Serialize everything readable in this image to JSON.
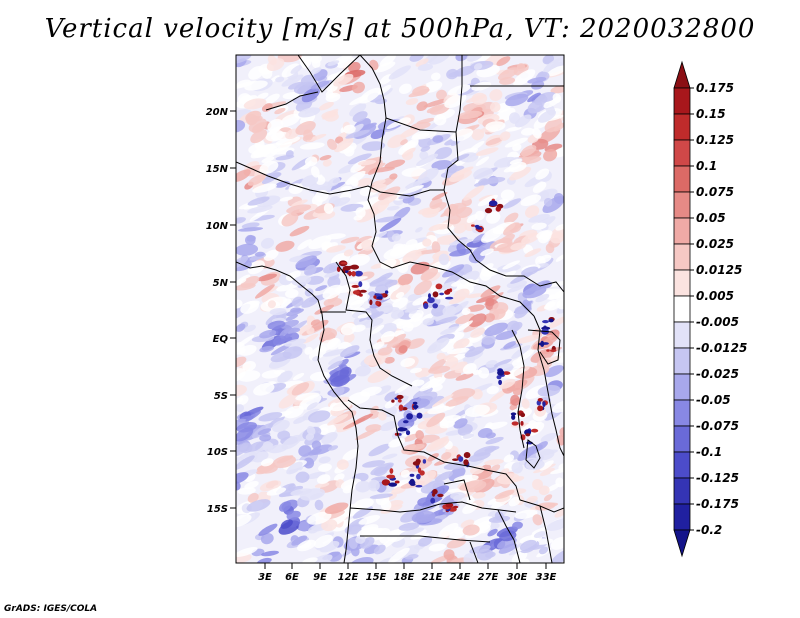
{
  "title": "Vertical velocity [m/s] at 500hPa, VT: 2020032800",
  "footer": "GrADS: IGES/COLA",
  "lat_ticks": [
    "20N",
    "15N",
    "10N",
    "5N",
    "EQ",
    "5S",
    "10S",
    "15S"
  ],
  "lon_ticks": [
    "3E",
    "6E",
    "9E",
    "12E",
    "15E",
    "18E",
    "21E",
    "24E",
    "27E",
    "30E",
    "33E"
  ],
  "colorbar": {
    "labels": [
      "0.175",
      "0.15",
      "0.125",
      "0.1",
      "0.075",
      "0.05",
      "0.025",
      "0.0125",
      "0.005",
      "-0.005",
      "-0.0125",
      "-0.025",
      "-0.05",
      "-0.075",
      "-0.1",
      "-0.125",
      "-0.175",
      "-0.2"
    ],
    "colors": [
      "#8b0f14",
      "#a8171c",
      "#bf2b2b",
      "#d04848",
      "#dc6a66",
      "#e68a86",
      "#f0aaa6",
      "#f6c8c4",
      "#fbe3e0",
      "#ffffff",
      "#e2e2f8",
      "#c6c6f2",
      "#a8a8ec",
      "#8888e4",
      "#6a6ad8",
      "#4c4cca",
      "#3434b4",
      "#2020a0",
      "#14148a"
    ]
  }
}
